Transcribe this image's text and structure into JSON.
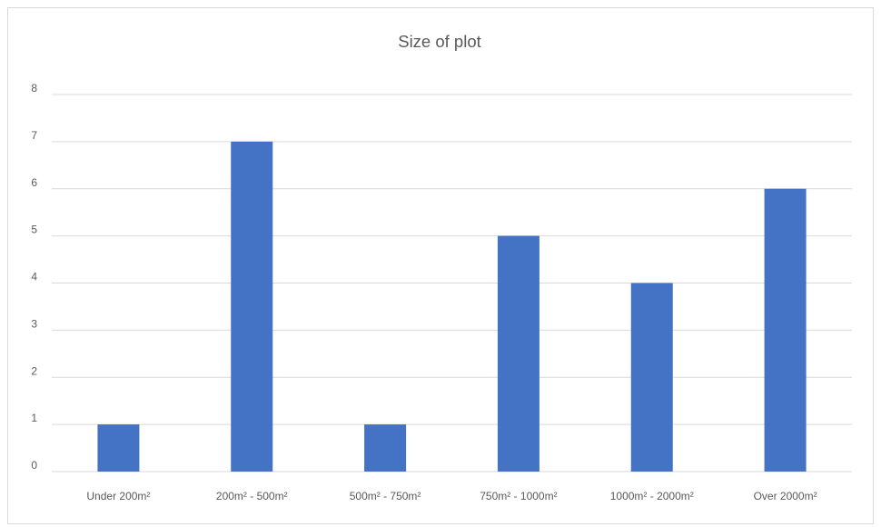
{
  "chart_data": {
    "type": "bar",
    "title": "Size of plot",
    "xlabel": "",
    "ylabel": "",
    "categories": [
      "Under 200m²",
      "200m² - 500m²",
      "500m² - 750m²",
      "750m² - 1000m²",
      "1000m² - 2000m²",
      "Over 2000m²"
    ],
    "values": [
      1,
      7,
      1,
      5,
      4,
      6
    ],
    "ylim": [
      0,
      8
    ],
    "yticks": [
      "0",
      "1",
      "2",
      "3",
      "4",
      "5",
      "6",
      "7",
      "8"
    ],
    "grid": true,
    "legend": "none",
    "bar_color": "#4472C4"
  }
}
